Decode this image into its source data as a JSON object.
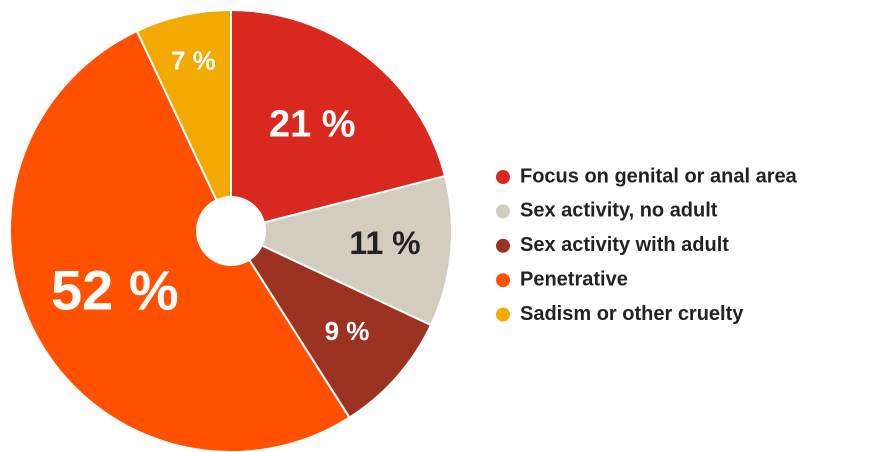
{
  "chart_data": {
    "type": "pie",
    "categories": [
      "Focus on genital or anal area",
      "Sex activity, no adult",
      "Sex activity with adult",
      "Penetrative",
      "Sadism or other cruelty"
    ],
    "values": [
      21,
      11,
      9,
      52,
      7
    ],
    "value_labels": [
      "21 %",
      "11 %",
      "9 %",
      "52 %",
      "7 %"
    ],
    "colors": [
      "#d9281e",
      "#d3cdbf",
      "#9b3222",
      "#ff5100",
      "#f2a900"
    ],
    "legend": "right"
  }
}
